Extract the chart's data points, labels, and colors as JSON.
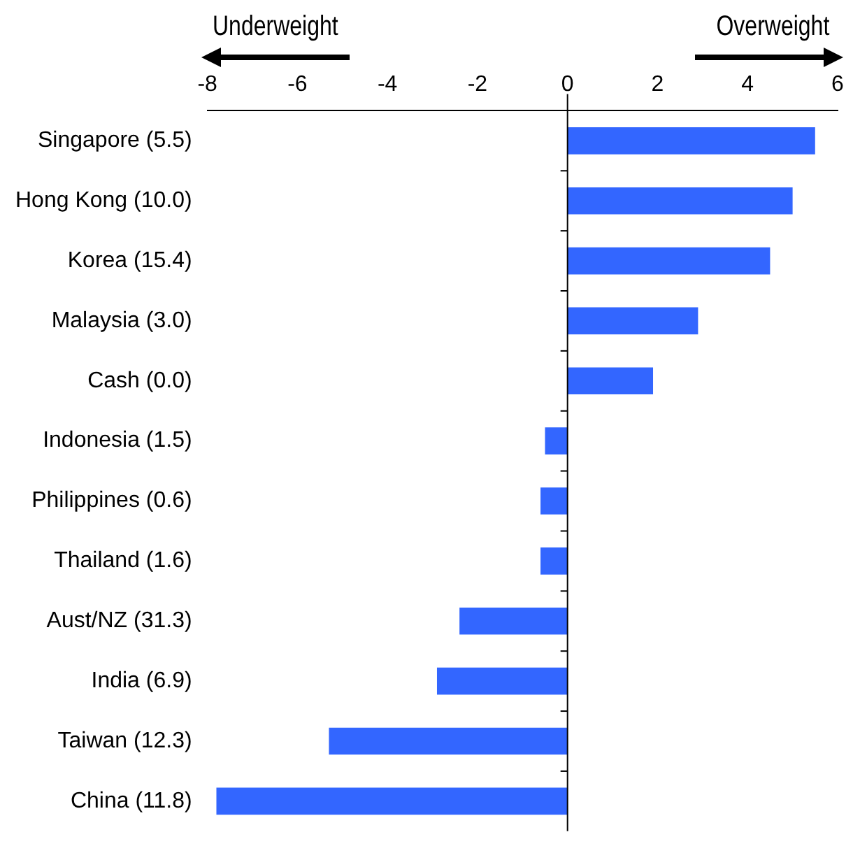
{
  "chart_data": {
    "type": "bar",
    "orientation": "horizontal",
    "categories": [
      "Singapore (5.5)",
      "Hong Kong (10.0)",
      "Korea (15.4)",
      "Malaysia (3.0)",
      "Cash (0.0)",
      "Indonesia (1.5)",
      "Philippines (0.6)",
      "Thailand (1.6)",
      "Aust/NZ (31.3)",
      "India (6.9)",
      "Taiwan (12.3)",
      "China (11.8)"
    ],
    "values": [
      5.5,
      5.0,
      4.5,
      2.9,
      1.9,
      -0.5,
      -0.6,
      -0.6,
      -2.4,
      -2.9,
      -5.3,
      -7.8
    ],
    "color": "#3366ff",
    "xlim": [
      -8,
      6
    ],
    "xticks": [
      -8,
      -6,
      -4,
      -2,
      0,
      2,
      4,
      6
    ],
    "annotations": [
      "Underweight",
      "Overweight"
    ],
    "legend": false
  }
}
